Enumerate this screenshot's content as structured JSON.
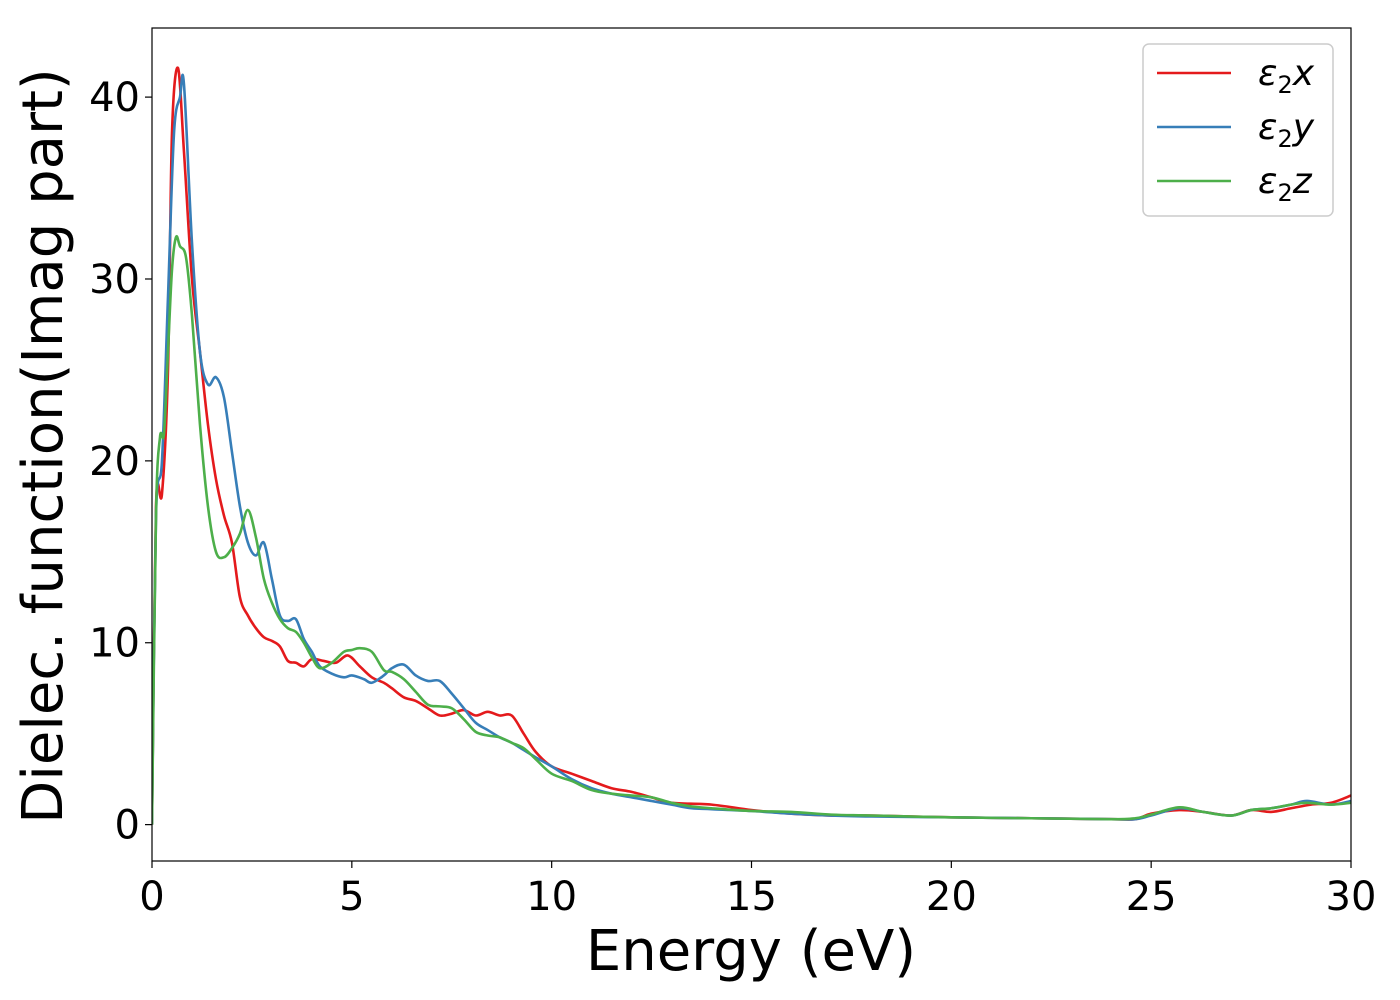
{
  "chart_data": {
    "type": "line",
    "xlabel": "Energy (eV)",
    "ylabel": "Dielec. function(Imag part)",
    "xlim": [
      0,
      30
    ],
    "ylim": [
      -2,
      43.8
    ],
    "xticks": [
      0,
      5,
      10,
      15,
      20,
      25,
      30
    ],
    "yticks": [
      0,
      10,
      20,
      30,
      40
    ],
    "grid": false,
    "legend_position": "top-right",
    "series": [
      {
        "name": "ε2x",
        "legend": {
          "base": "ε",
          "sub": "2",
          "var": "x"
        },
        "color": "#e41a1c",
        "points": [
          [
            0,
            0
          ],
          [
            0.1,
            17.5
          ],
          [
            0.25,
            18.2
          ],
          [
            0.4,
            25
          ],
          [
            0.5,
            38
          ],
          [
            0.65,
            41.6
          ],
          [
            0.8,
            37
          ],
          [
            1.0,
            30
          ],
          [
            1.2,
            26
          ],
          [
            1.4,
            22
          ],
          [
            1.6,
            19
          ],
          [
            1.8,
            17
          ],
          [
            2.0,
            15.5
          ],
          [
            2.2,
            12.5
          ],
          [
            2.4,
            11.5
          ],
          [
            2.6,
            10.8
          ],
          [
            2.8,
            10.3
          ],
          [
            3.0,
            10.1
          ],
          [
            3.2,
            9.8
          ],
          [
            3.4,
            9.0
          ],
          [
            3.6,
            8.9
          ],
          [
            3.8,
            8.7
          ],
          [
            4.0,
            9.1
          ],
          [
            4.3,
            9.0
          ],
          [
            4.6,
            8.9
          ],
          [
            4.9,
            9.3
          ],
          [
            5.2,
            8.7
          ],
          [
            5.5,
            8.1
          ],
          [
            5.8,
            7.8
          ],
          [
            6.0,
            7.5
          ],
          [
            6.3,
            7.0
          ],
          [
            6.6,
            6.8
          ],
          [
            6.9,
            6.4
          ],
          [
            7.2,
            6.0
          ],
          [
            7.5,
            6.1
          ],
          [
            7.8,
            6.3
          ],
          [
            8.1,
            6.0
          ],
          [
            8.4,
            6.2
          ],
          [
            8.7,
            6.0
          ],
          [
            9.0,
            6.0
          ],
          [
            9.3,
            5.0
          ],
          [
            9.6,
            4.0
          ],
          [
            10.0,
            3.2
          ],
          [
            10.5,
            2.8
          ],
          [
            11.0,
            2.4
          ],
          [
            11.5,
            2.0
          ],
          [
            12.0,
            1.8
          ],
          [
            12.5,
            1.5
          ],
          [
            13.0,
            1.2
          ],
          [
            14.0,
            1.1
          ],
          [
            15.0,
            0.8
          ],
          [
            16.0,
            0.6
          ],
          [
            17.0,
            0.5
          ],
          [
            18.0,
            0.5
          ],
          [
            20.0,
            0.4
          ],
          [
            22.0,
            0.35
          ],
          [
            24.0,
            0.3
          ],
          [
            24.6,
            0.3
          ],
          [
            25.0,
            0.6
          ],
          [
            25.7,
            0.8
          ],
          [
            26.3,
            0.7
          ],
          [
            27.0,
            0.5
          ],
          [
            27.5,
            0.8
          ],
          [
            28.0,
            0.7
          ],
          [
            28.5,
            0.9
          ],
          [
            29.0,
            1.1
          ],
          [
            29.5,
            1.2
          ],
          [
            30.0,
            1.6
          ]
        ]
      },
      {
        "name": "ε2y",
        "legend": {
          "base": "ε",
          "sub": "2",
          "var": "y"
        },
        "color": "#377eb8",
        "points": [
          [
            0,
            0
          ],
          [
            0.1,
            17.0
          ],
          [
            0.25,
            20.0
          ],
          [
            0.4,
            29
          ],
          [
            0.55,
            38
          ],
          [
            0.7,
            40
          ],
          [
            0.8,
            40.7
          ],
          [
            1.0,
            32
          ],
          [
            1.2,
            26
          ],
          [
            1.4,
            24.2
          ],
          [
            1.6,
            24.6
          ],
          [
            1.8,
            23.5
          ],
          [
            2.0,
            20.5
          ],
          [
            2.2,
            17.5
          ],
          [
            2.4,
            15.5
          ],
          [
            2.6,
            14.8
          ],
          [
            2.8,
            15.5
          ],
          [
            3.0,
            13.5
          ],
          [
            3.2,
            11.5
          ],
          [
            3.4,
            11.2
          ],
          [
            3.6,
            11.3
          ],
          [
            3.8,
            10.2
          ],
          [
            4.0,
            9.5
          ],
          [
            4.2,
            8.7
          ],
          [
            4.5,
            8.3
          ],
          [
            4.8,
            8.1
          ],
          [
            5.0,
            8.2
          ],
          [
            5.3,
            8.0
          ],
          [
            5.5,
            7.8
          ],
          [
            5.8,
            8.2
          ],
          [
            6.0,
            8.6
          ],
          [
            6.3,
            8.8
          ],
          [
            6.6,
            8.2
          ],
          [
            6.9,
            7.9
          ],
          [
            7.2,
            7.9
          ],
          [
            7.5,
            7.2
          ],
          [
            7.8,
            6.4
          ],
          [
            8.1,
            5.6
          ],
          [
            8.4,
            5.2
          ],
          [
            8.7,
            4.8
          ],
          [
            9.0,
            4.5
          ],
          [
            9.3,
            4.1
          ],
          [
            9.6,
            3.7
          ],
          [
            10.0,
            3.2
          ],
          [
            10.5,
            2.5
          ],
          [
            11.0,
            2.0
          ],
          [
            11.5,
            1.7
          ],
          [
            12.0,
            1.5
          ],
          [
            12.5,
            1.3
          ],
          [
            13.0,
            1.1
          ],
          [
            13.5,
            0.9
          ],
          [
            14.0,
            0.85
          ],
          [
            15.0,
            0.75
          ],
          [
            16.0,
            0.6
          ],
          [
            17.0,
            0.5
          ],
          [
            18.0,
            0.45
          ],
          [
            20.0,
            0.4
          ],
          [
            22.0,
            0.35
          ],
          [
            24.0,
            0.3
          ],
          [
            24.6,
            0.3
          ],
          [
            25.0,
            0.5
          ],
          [
            25.7,
            0.9
          ],
          [
            26.3,
            0.7
          ],
          [
            27.0,
            0.5
          ],
          [
            27.5,
            0.8
          ],
          [
            28.0,
            0.9
          ],
          [
            28.5,
            1.1
          ],
          [
            28.9,
            1.3
          ],
          [
            29.5,
            1.1
          ],
          [
            30.0,
            1.3
          ]
        ]
      },
      {
        "name": "ε2z",
        "legend": {
          "base": "ε",
          "sub": "2",
          "var": "z"
        },
        "color": "#4daf4a",
        "points": [
          [
            0,
            0
          ],
          [
            0.1,
            17.0
          ],
          [
            0.2,
            21.3
          ],
          [
            0.3,
            21.5
          ],
          [
            0.4,
            26
          ],
          [
            0.5,
            30.5
          ],
          [
            0.6,
            32.3
          ],
          [
            0.7,
            31.8
          ],
          [
            0.85,
            31.2
          ],
          [
            1.0,
            28
          ],
          [
            1.2,
            22
          ],
          [
            1.4,
            17.5
          ],
          [
            1.6,
            15.0
          ],
          [
            1.8,
            14.7
          ],
          [
            2.0,
            15.2
          ],
          [
            2.2,
            16.0
          ],
          [
            2.4,
            17.3
          ],
          [
            2.6,
            15.8
          ],
          [
            2.8,
            13.5
          ],
          [
            3.0,
            12.2
          ],
          [
            3.2,
            11.3
          ],
          [
            3.4,
            10.8
          ],
          [
            3.6,
            10.6
          ],
          [
            3.8,
            10.0
          ],
          [
            4.0,
            9.2
          ],
          [
            4.2,
            8.6
          ],
          [
            4.5,
            8.9
          ],
          [
            4.8,
            9.5
          ],
          [
            5.0,
            9.6
          ],
          [
            5.2,
            9.7
          ],
          [
            5.5,
            9.5
          ],
          [
            5.8,
            8.5
          ],
          [
            6.0,
            8.4
          ],
          [
            6.3,
            8.0
          ],
          [
            6.6,
            7.3
          ],
          [
            6.9,
            6.6
          ],
          [
            7.2,
            6.5
          ],
          [
            7.5,
            6.4
          ],
          [
            7.8,
            5.8
          ],
          [
            8.1,
            5.1
          ],
          [
            8.4,
            4.9
          ],
          [
            8.7,
            4.8
          ],
          [
            9.0,
            4.5
          ],
          [
            9.3,
            4.2
          ],
          [
            9.6,
            3.6
          ],
          [
            10.0,
            2.8
          ],
          [
            10.5,
            2.4
          ],
          [
            11.0,
            1.9
          ],
          [
            11.5,
            1.7
          ],
          [
            12.0,
            1.6
          ],
          [
            12.5,
            1.5
          ],
          [
            13.0,
            1.2
          ],
          [
            13.5,
            1.0
          ],
          [
            14.0,
            0.9
          ],
          [
            15.0,
            0.75
          ],
          [
            16.0,
            0.7
          ],
          [
            17.0,
            0.55
          ],
          [
            18.0,
            0.5
          ],
          [
            20.0,
            0.4
          ],
          [
            22.0,
            0.35
          ],
          [
            24.0,
            0.3
          ],
          [
            24.6,
            0.35
          ],
          [
            25.0,
            0.55
          ],
          [
            25.7,
            0.95
          ],
          [
            26.3,
            0.7
          ],
          [
            27.0,
            0.5
          ],
          [
            27.5,
            0.8
          ],
          [
            28.0,
            0.9
          ],
          [
            28.5,
            1.1
          ],
          [
            28.9,
            1.2
          ],
          [
            29.5,
            1.1
          ],
          [
            30.0,
            1.2
          ]
        ]
      }
    ]
  }
}
